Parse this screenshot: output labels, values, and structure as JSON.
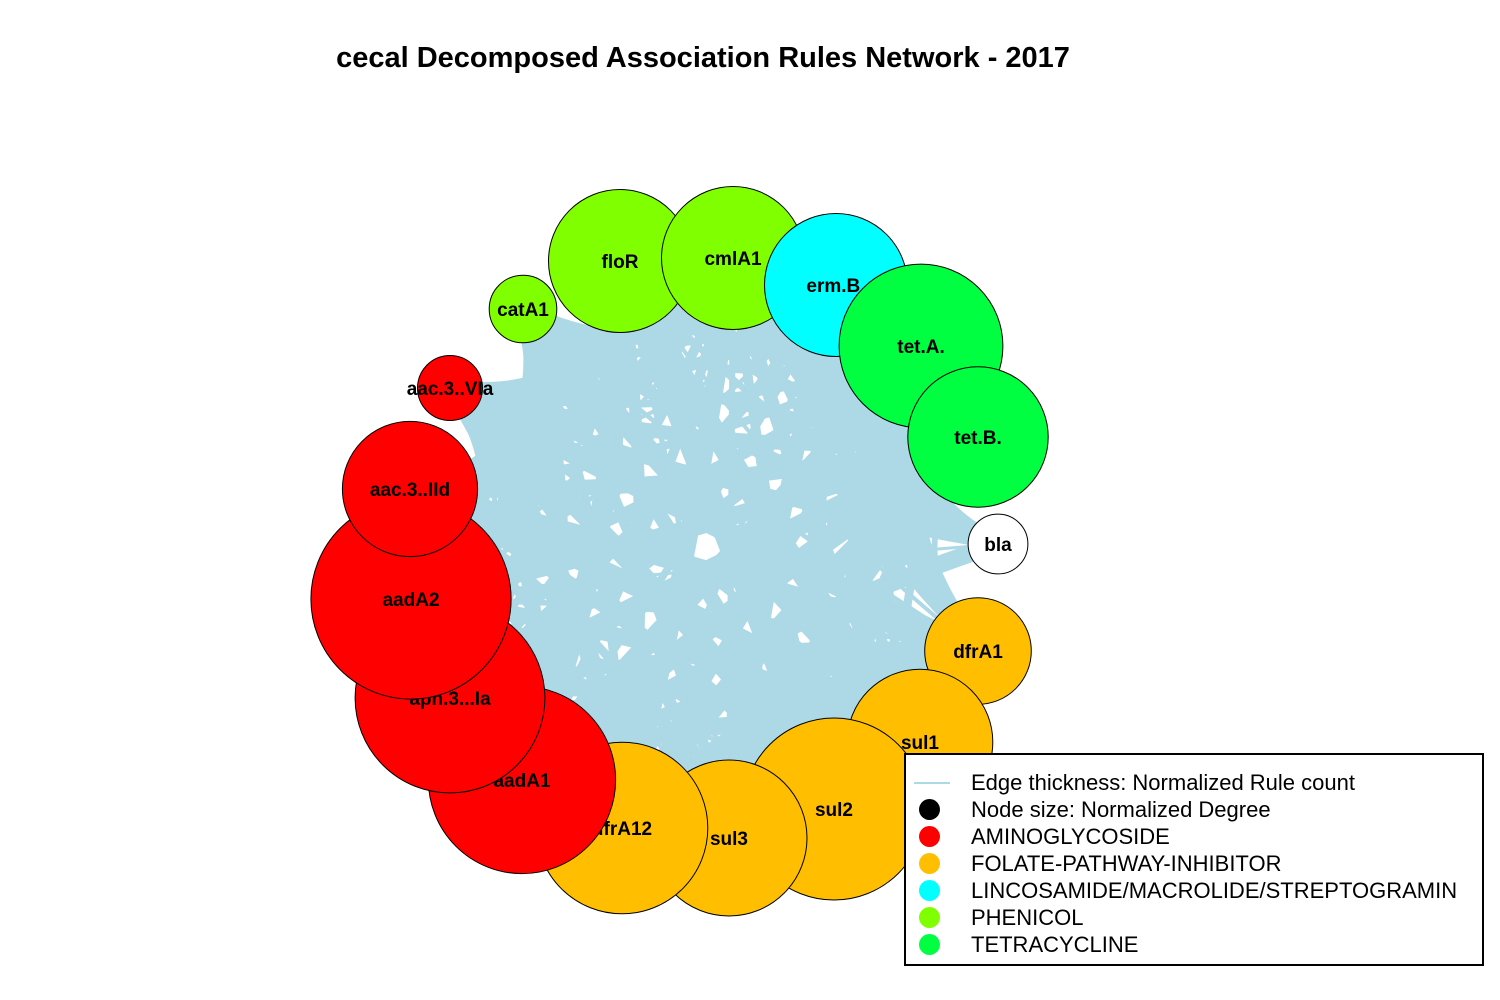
{
  "title": "cecal Decomposed Association Rules Network - 2017",
  "colors": {
    "edge": "#ADD8E6",
    "background": "#FFFFFF",
    "AMINOGLYCOSIDE": "#FF0000",
    "FOLATE-PATHWAY-INHIBITOR": "#FFBF00",
    "LINCOSAMIDE/MACROLIDE/STREPTOGRAMIN": "#00FFFF",
    "PHENICOL": "#80FF00",
    "TETRACYCLINE": "#00FF40",
    "none": "#FFFFFF"
  },
  "nodes": [
    {
      "label": "catA1",
      "class": "PHENICOL",
      "size": 0.26
    },
    {
      "label": "floR",
      "class": "PHENICOL",
      "size": 0.55
    },
    {
      "label": "cmlA1",
      "class": "PHENICOL",
      "size": 0.55
    },
    {
      "label": "erm.B.",
      "class": "LINCOSAMIDE/MACROLIDE/STREPTOGRAMIN",
      "size": 0.55
    },
    {
      "label": "tet.A.",
      "class": "TETRACYCLINE",
      "size": 0.63
    },
    {
      "label": "tet.B.",
      "class": "TETRACYCLINE",
      "size": 0.54
    },
    {
      "label": "bla",
      "class": "none",
      "size": 0.23
    },
    {
      "label": "dfrA1",
      "class": "FOLATE-PATHWAY-INHIBITOR",
      "size": 0.41
    },
    {
      "label": "sul1",
      "class": "FOLATE-PATHWAY-INHIBITOR",
      "size": 0.56
    },
    {
      "label": "sul2",
      "class": "FOLATE-PATHWAY-INHIBITOR",
      "size": 0.7
    },
    {
      "label": "sul3",
      "class": "FOLATE-PATHWAY-INHIBITOR",
      "size": 0.6
    },
    {
      "label": "dfrA12",
      "class": "FOLATE-PATHWAY-INHIBITOR",
      "size": 0.66
    },
    {
      "label": "aadA1",
      "class": "AMINOGLYCOSIDE",
      "size": 0.72
    },
    {
      "label": "aph.3...Ia",
      "class": "AMINOGLYCOSIDE",
      "size": 0.73
    },
    {
      "label": "aadA2",
      "class": "AMINOGLYCOSIDE",
      "size": 0.77
    },
    {
      "label": "aac.3..IId",
      "class": "AMINOGLYCOSIDE",
      "size": 0.52
    },
    {
      "label": "aac.3..VIa",
      "class": "AMINOGLYCOSIDE",
      "size": 0.25
    }
  ],
  "legend": {
    "items": [
      {
        "label": "Edge thickness: Normalized Rule count",
        "kind": "line",
        "color": "#ADD8E6"
      },
      {
        "label": "Node size: Normalized Degree",
        "kind": "dot",
        "color": "#000000"
      },
      {
        "label": "AMINOGLYCOSIDE",
        "kind": "dot",
        "color": "#FF0000"
      },
      {
        "label": "FOLATE-PATHWAY-INHIBITOR",
        "kind": "dot",
        "color": "#FFBF00"
      },
      {
        "label": "LINCOSAMIDE/MACROLIDE/STREPTOGRAMIN",
        "kind": "dot",
        "color": "#00FFFF"
      },
      {
        "label": "PHENICOL",
        "kind": "dot",
        "color": "#80FF00"
      },
      {
        "label": "TETRACYCLINE",
        "kind": "dot",
        "color": "#00FF40"
      }
    ]
  }
}
